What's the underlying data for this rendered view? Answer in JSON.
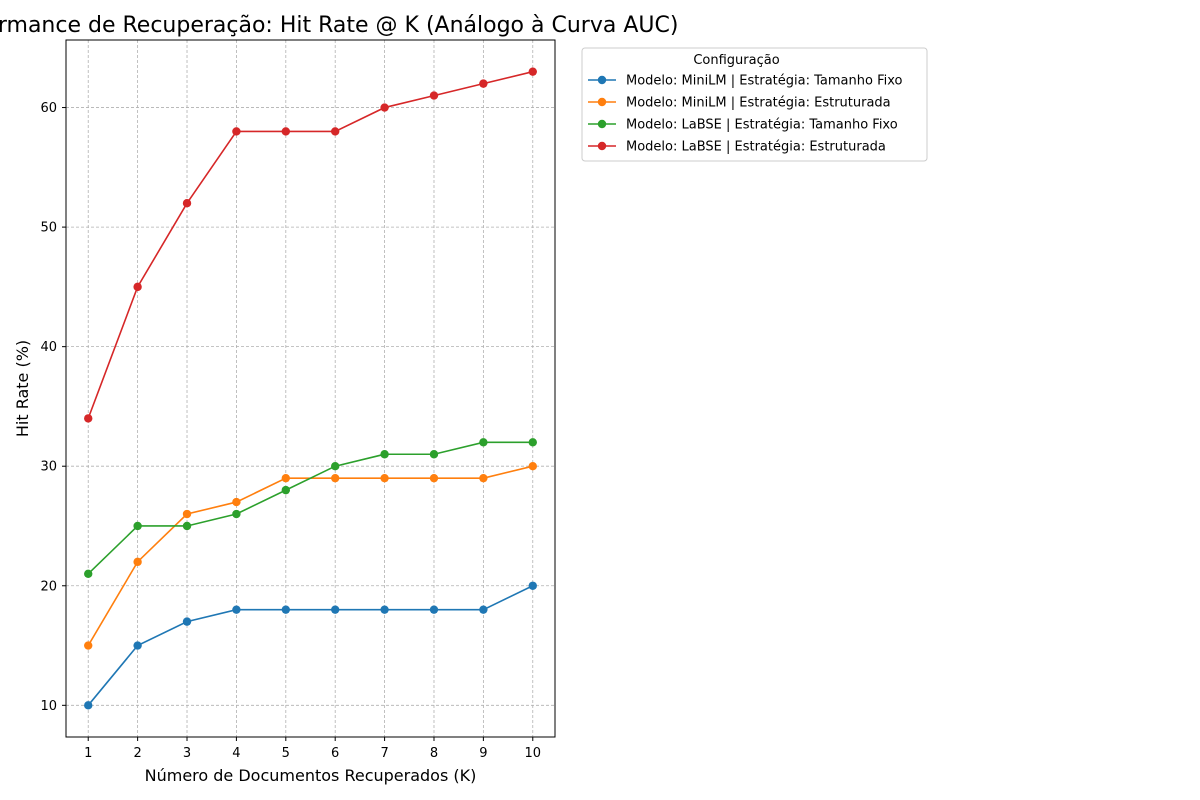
{
  "chart_data": {
    "type": "line",
    "title": "Performance de Recuperação: Hit Rate @ K (Análogo à Curva AUC)",
    "xlabel": "Número de Documentos Recuperados (K)",
    "ylabel": "Hit Rate (%)",
    "x": [
      1,
      2,
      3,
      4,
      5,
      6,
      7,
      8,
      9,
      10
    ],
    "xlim": [
      0.55,
      10.45
    ],
    "ylim": [
      7.35,
      65.65
    ],
    "yticks": [
      10,
      20,
      30,
      40,
      50,
      60
    ],
    "grid": true,
    "legend": {
      "title": "Configuração",
      "placement": "outside-top-right"
    },
    "series": [
      {
        "name": "Modelo: MiniLM | Estratégia: Tamanho Fixo",
        "color": "#1f77b4",
        "values": [
          10,
          15,
          17,
          18,
          18,
          18,
          18,
          18,
          18,
          20
        ]
      },
      {
        "name": "Modelo: MiniLM | Estratégia: Estruturada",
        "color": "#ff7f0e",
        "values": [
          15,
          22,
          26,
          27,
          29,
          29,
          29,
          29,
          29,
          30
        ]
      },
      {
        "name": "Modelo: LaBSE | Estratégia: Tamanho Fixo",
        "color": "#2ca02c",
        "values": [
          21,
          25,
          25,
          26,
          28,
          30,
          31,
          31,
          32,
          32
        ]
      },
      {
        "name": "Modelo: LaBSE | Estratégia: Estruturada",
        "color": "#d62728",
        "values": [
          34,
          45,
          52,
          58,
          58,
          58,
          60,
          61,
          62,
          63
        ]
      }
    ]
  }
}
